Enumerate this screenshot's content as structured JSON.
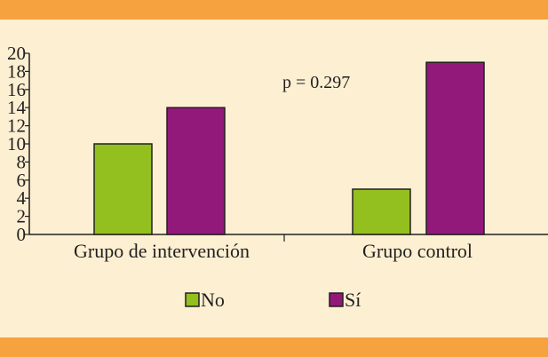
{
  "colors": {
    "background": "#FDF0D2",
    "band": "#F6A23E",
    "no": "#93C01F",
    "si": "#92197A",
    "ink": "#231F20"
  },
  "chart_data": {
    "type": "bar",
    "categories": [
      "Grupo de intervención",
      "Grupo control"
    ],
    "series": [
      {
        "name": "No",
        "values": [
          10,
          5
        ]
      },
      {
        "name": "Sí",
        "values": [
          14,
          19
        ]
      }
    ],
    "yticks": [
      0,
      2,
      4,
      6,
      8,
      10,
      12,
      14,
      16,
      18,
      20
    ],
    "ylim": [
      0,
      20
    ],
    "annotation": "p = 0.297",
    "legend_position": "bottom-center",
    "grid": false
  }
}
